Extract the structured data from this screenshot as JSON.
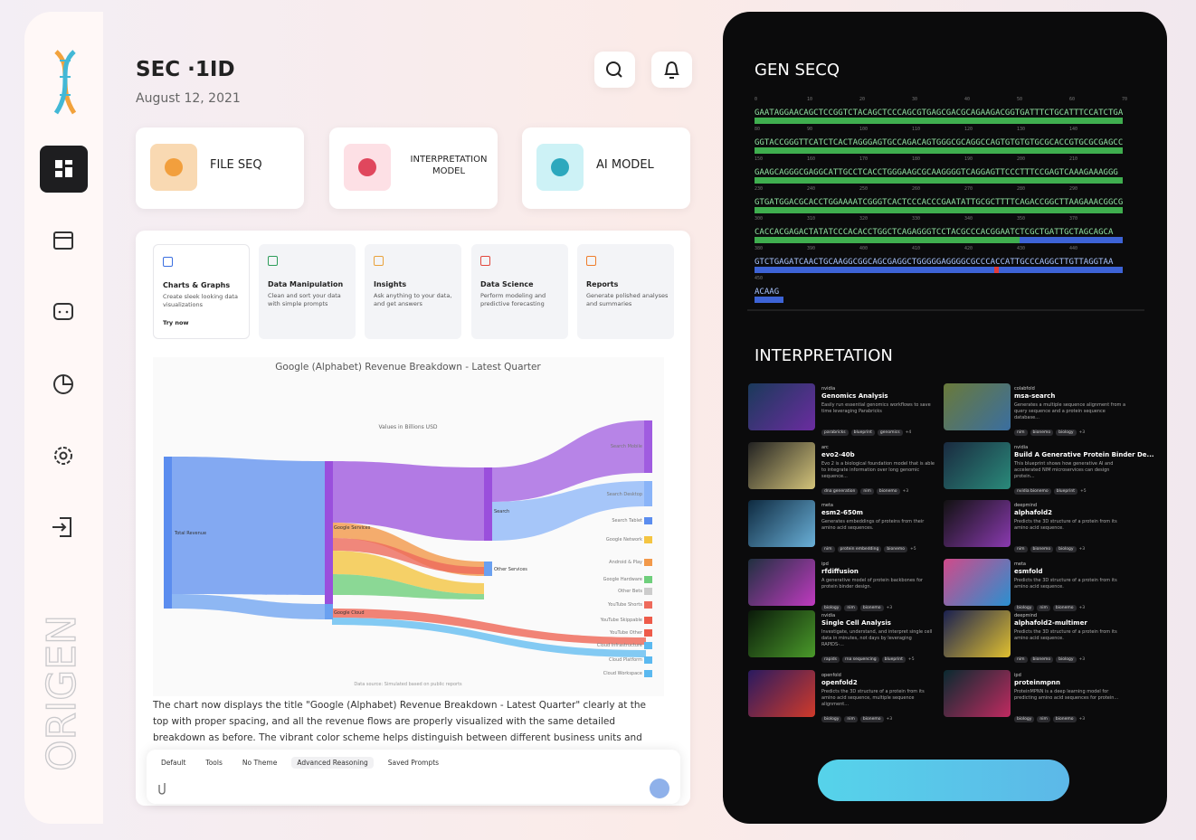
{
  "header": {
    "title": "SEC ·1ID",
    "date": "August 12, 2021"
  },
  "top_cards": [
    {
      "label": "FILE SEQ"
    },
    {
      "label": "INTERPRETATION MODEL"
    },
    {
      "label": "AI MODEL"
    }
  ],
  "tools": [
    {
      "title": "Charts & Graphs",
      "desc": "Create sleek looking data visualizations",
      "link": "Try now"
    },
    {
      "title": "Data Manipulation",
      "desc": "Clean and sort your data with simple prompts"
    },
    {
      "title": "Insights",
      "desc": "Ask anything to your data, and get answers"
    },
    {
      "title": "Data Science",
      "desc": "Perform modeling and predictive forecasting"
    },
    {
      "title": "Reports",
      "desc": "Generate polished analyses and summaries"
    }
  ],
  "chart_panel": {
    "title": "Google (Alphabet) Revenue Breakdown - Latest Quarter",
    "subtitle": "Values in Billions USD",
    "source": "Data source: Simulated based on public reports",
    "left_labels": [
      "Total Revenue"
    ],
    "mid_labels": [
      "Google Services",
      "Google Cloud"
    ],
    "mid2_labels": [
      "Search",
      "Other Services"
    ],
    "right_labels": [
      "Search Mobile",
      "Search Desktop",
      "Search Tablet",
      "Google Network",
      "Android & Play",
      "Google Hardware",
      "Other Bets",
      "YouTube Shorts",
      "YouTube Skippable",
      "YouTube Other",
      "Cloud Infrastructure",
      "Cloud Platform",
      "Cloud Workspace"
    ]
  },
  "message": "The chart now displays the title \"Google (Alphabet) Revenue Breakdown - Latest Quarter\" clearly at the top with proper spacing, and all the revenue flows are properly visualized with the same detailed breakdown as before. The vibrant color scheme helps distinguish between different business units and their revenue streams.",
  "toolbar": [
    "Default",
    "Tools",
    "No Theme",
    "Advanced Reasoning",
    "Saved Prompts"
  ],
  "brand": "ORIGEN",
  "gen": {
    "title": "GEN SECQ",
    "rows": [
      {
        "ruler": [
          0,
          10,
          20,
          30,
          40,
          50,
          60,
          70
        ],
        "seq": "GAATAGGAACAGCTCCGGTCTACAGCTCCCAGCGTGAGCGACGCAGAAGACGGTGATTTCTGCATTTCCATCTGA"
      },
      {
        "ruler": [
          80,
          90,
          100,
          110,
          120,
          130,
          140
        ],
        "seq": "GGTACCGGGTTCATCTCACTAGGGAGTGCCAGACAGTGGGCGCAGGCCAGTGTGTGTGCGCACCGTGCGCGAGCC"
      },
      {
        "ruler": [
          150,
          160,
          170,
          180,
          190,
          200,
          210
        ],
        "seq": "GAAGCAGGGCGAGGCATTGCCTCACCTGGGAAGCGCAAGGGGTCAGGAGTTCCCTTTCCGAGTCAAAGAAAGGG"
      },
      {
        "ruler": [
          230,
          240,
          250,
          260,
          270,
          280,
          290
        ],
        "seq": "GTGATGGACGCACCTGGAAAATCGGGTCACTCCCACCCGAATATTGCGCTTTTCAGACCGGCTTAAGAAACGGCG"
      },
      {
        "ruler": [
          300,
          310,
          320,
          330,
          340,
          350,
          370
        ],
        "seq": "CACCACGAGACTATATCCCACACCTGGCTCAGAGGGTCCTACGCCCACGGAATCTCGCTGATTGCTAGCAGCA"
      },
      {
        "ruler": [
          380,
          390,
          400,
          410,
          420,
          430,
          440
        ],
        "seq": "GTCTGAGATCAACTGCAAGGCGGCAGCGAGGCTGGGGGAGGGGCGCCCACCATTGCCCAGGCTTGTTAGGTAA"
      },
      {
        "ruler": [
          450
        ],
        "seq": "ACAAG"
      }
    ]
  },
  "interpretation": {
    "title": "INTERPRETATION",
    "models": [
      {
        "org": "nvidia",
        "name": "Genomics Analysis",
        "desc": "Easily run essential genomics workflows to save time leveraging Parabricks",
        "tags": [
          "parabricks",
          "blueprint",
          "genomics"
        ],
        "more": "+4"
      },
      {
        "org": "colabfold",
        "name": "msa-search",
        "desc": "Generates a multiple sequence alignment from a query sequence and a protein sequence database...",
        "tags": [
          "nim",
          "bionemo",
          "biology"
        ],
        "more": "+3"
      },
      {
        "org": "arc",
        "name": "evo2-40b",
        "desc": "Evo 2 is a biological foundation model that is able to integrate information over long genomic sequence...",
        "tags": [
          "dna generation",
          "nim",
          "bionemo"
        ],
        "more": "+3"
      },
      {
        "org": "nvidia",
        "name": "Build A Generative Protein Binder De...",
        "desc": "This blueprint shows how generative AI and accelerated NIM microservices can design protein...",
        "tags": [
          "nvidia bionemo",
          "blueprint"
        ],
        "more": "+5"
      },
      {
        "org": "meta",
        "name": "esm2-650m",
        "desc": "Generates embeddings of proteins from their amino acid sequences.",
        "tags": [
          "nim",
          "protein embedding",
          "bionemo"
        ],
        "more": "+5"
      },
      {
        "org": "deepmind",
        "name": "alphafold2",
        "desc": "Predicts the 3D structure of a protein from its amino acid sequence.",
        "tags": [
          "nim",
          "bionemo",
          "biology"
        ],
        "more": "+3"
      },
      {
        "org": "ipd",
        "name": "rfdiffusion",
        "desc": "A generative model of protein backbones for protein binder design.",
        "tags": [
          "biology",
          "nim",
          "bionemo"
        ],
        "more": "+3"
      },
      {
        "org": "meta",
        "name": "esmfold",
        "desc": "Predicts the 3D structure of a protein from its amino acid sequence.",
        "tags": [
          "biology",
          "nim",
          "bionemo"
        ],
        "more": "+3"
      },
      {
        "org": "nvidia",
        "name": "Single Cell Analysis",
        "desc": "Investigate, understand, and interpret single cell data in minutes, not days by leveraging RAPIDS-...",
        "tags": [
          "rapids",
          "rna sequencing",
          "blueprint"
        ],
        "more": "+5"
      },
      {
        "org": "deepmind",
        "name": "alphafold2-multimer",
        "desc": "Predicts the 3D structure of a protein from its amino acid sequence.",
        "tags": [
          "nim",
          "bionemo",
          "biology"
        ],
        "more": "+3"
      },
      {
        "org": "openfold",
        "name": "openfold2",
        "desc": "Predicts the 3D structure of a protein from its amino acid sequence, multiple sequence alignment...",
        "tags": [
          "biology",
          "nim",
          "bionemo"
        ],
        "more": "+3"
      },
      {
        "org": "ipd",
        "name": "proteinmpnn",
        "desc": "ProteinMPNN is a deep learning model for predicting amino acid sequences for protein...",
        "tags": [
          "biology",
          "nim",
          "bionemo"
        ],
        "more": "+3"
      }
    ]
  }
}
